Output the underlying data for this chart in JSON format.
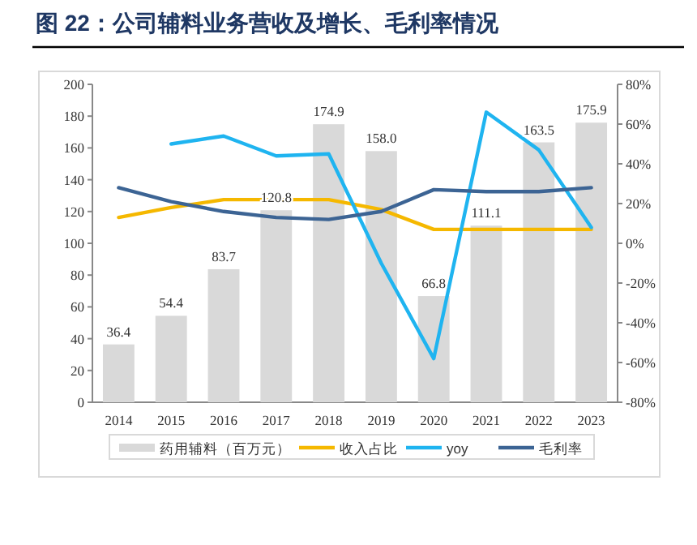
{
  "chart_data": {
    "type": "bar",
    "title": "图 22：公司辅料业务营收及增长、毛利率情况",
    "categories": [
      "2014",
      "2015",
      "2016",
      "2017",
      "2018",
      "2019",
      "2020",
      "2021",
      "2022",
      "2023"
    ],
    "series": [
      {
        "name": "药用辅料（百万元）",
        "color": "#d9d9d9",
        "values": [
          36.4,
          54.4,
          83.7,
          120.8,
          174.9,
          158.0,
          66.8,
          111.1,
          163.5,
          175.9
        ],
        "value_labels": [
          "36.4",
          "54.4",
          "83.7",
          "120.8",
          "174.9",
          "158.0",
          "66.8",
          "111.1",
          "163.5",
          "175.9"
        ]
      },
      {
        "name": "收入占比",
        "type": "line",
        "axis": "y2",
        "color": "#f5b800",
        "values": [
          13,
          18,
          22,
          22,
          22,
          17,
          7,
          7,
          7,
          7
        ]
      },
      {
        "name": "yoy",
        "type": "line",
        "axis": "y2",
        "color": "#1fb4f0",
        "values": [
          null,
          50,
          54,
          44,
          45,
          -10,
          -58,
          66,
          47,
          8
        ]
      },
      {
        "name": "毛利率",
        "type": "line",
        "axis": "y2",
        "color": "#3c6494",
        "values": [
          28,
          21,
          16,
          13,
          12,
          16,
          27,
          26,
          26,
          28
        ]
      }
    ],
    "ylim": [
      0,
      200
    ],
    "yticks": [
      0,
      20,
      40,
      60,
      80,
      100,
      120,
      140,
      160,
      180,
      200
    ],
    "y2lim": [
      -80,
      80
    ],
    "y2ticks": [
      {
        "value": -80,
        "label": "-80%"
      },
      {
        "value": -60,
        "label": "-60%"
      },
      {
        "value": -40,
        "label": "-40%"
      },
      {
        "value": -20,
        "label": "-20%"
      },
      {
        "value": 0,
        "label": "0%"
      },
      {
        "value": 20,
        "label": "20%"
      },
      {
        "value": 40,
        "label": "40%"
      },
      {
        "value": 60,
        "label": "60%"
      },
      {
        "value": 80,
        "label": "80%"
      }
    ],
    "legend": "bottom"
  }
}
